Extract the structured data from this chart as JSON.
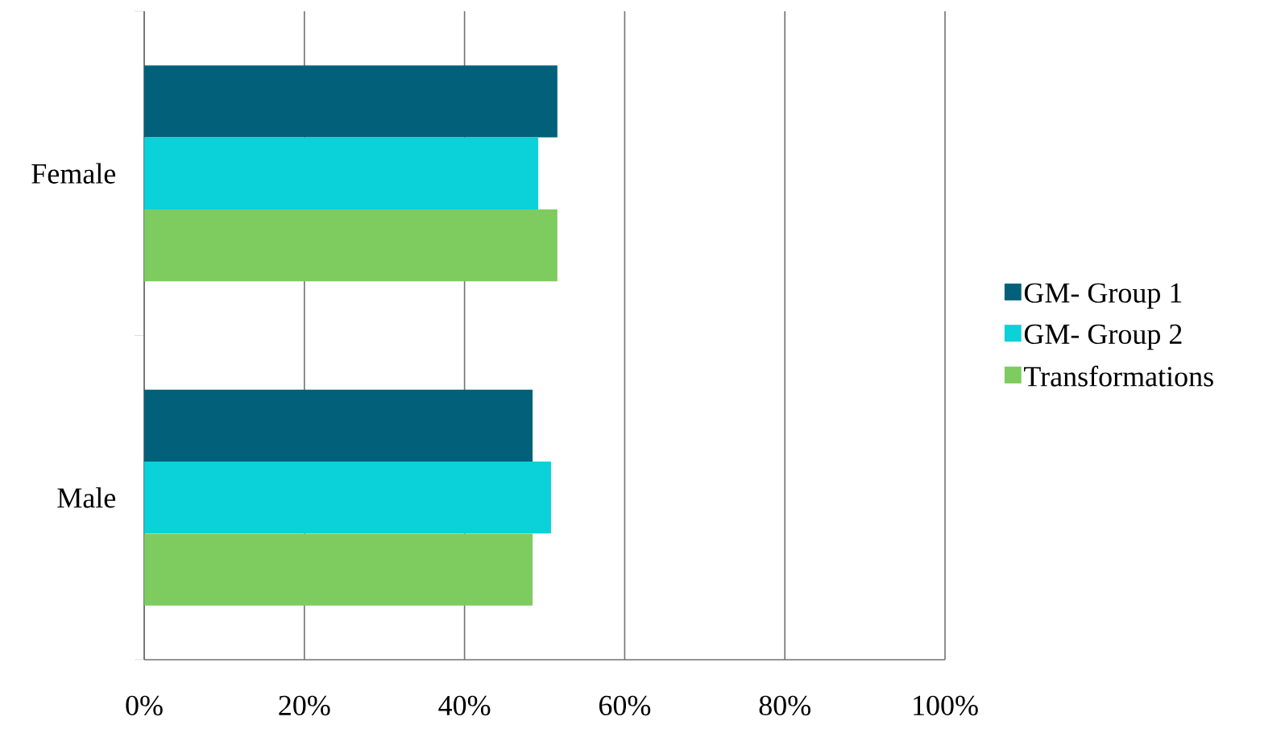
{
  "chart_data": {
    "type": "bar",
    "orientation": "horizontal",
    "categories": [
      "Female",
      "Male"
    ],
    "series": [
      {
        "name": "GM- Group 1",
        "color": "#02607a",
        "values": [
          51.6,
          48.5
        ]
      },
      {
        "name": "GM- Group 2",
        "color": "#0bd1d8",
        "values": [
          49.2,
          50.8
        ]
      },
      {
        "name": "Transformations",
        "color": "#7ecb60",
        "values": [
          51.6,
          48.5
        ]
      }
    ],
    "xlim": [
      0,
      100
    ],
    "xticks": [
      {
        "value": 0,
        "label": "0%"
      },
      {
        "value": 20,
        "label": "20%"
      },
      {
        "value": 40,
        "label": "40%"
      },
      {
        "value": 60,
        "label": "60%"
      },
      {
        "value": 80,
        "label": "80%"
      },
      {
        "value": 100,
        "label": "100%"
      }
    ],
    "grid": "x",
    "legend": "right"
  }
}
